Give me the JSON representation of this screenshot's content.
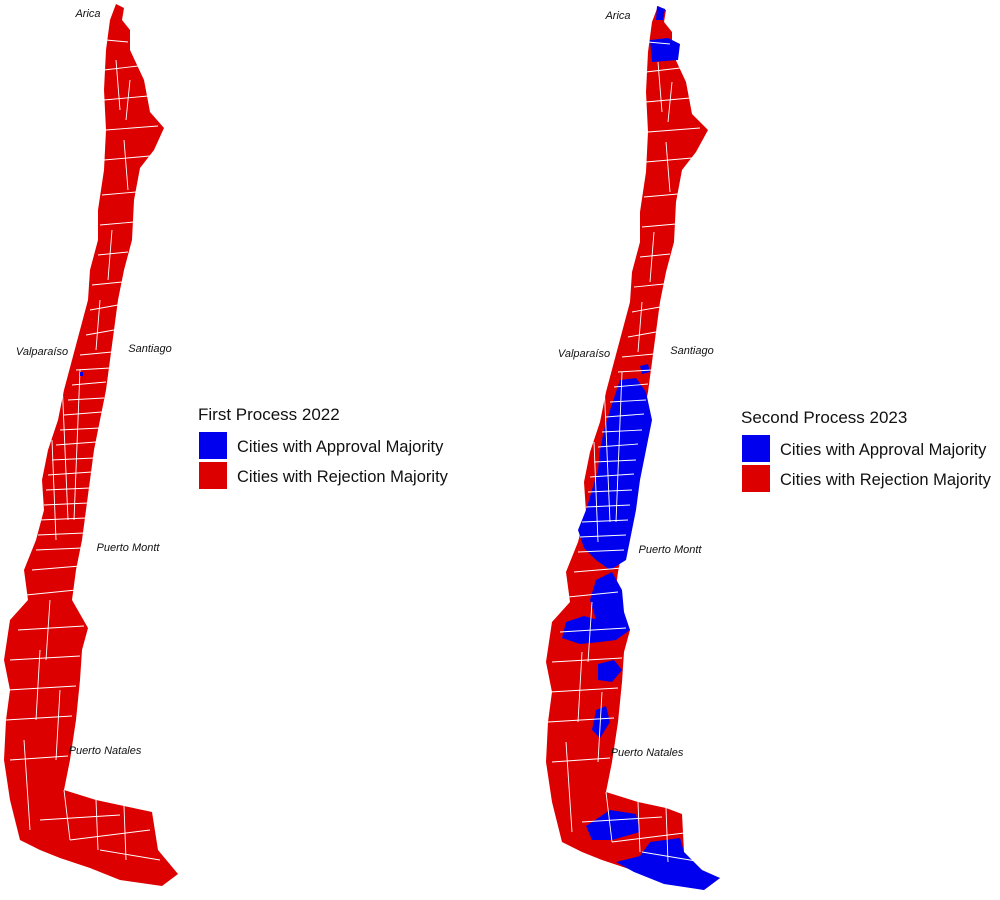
{
  "colors": {
    "approval": "#0000ee",
    "rejection": "#dd0000",
    "boundary": "#ffffff"
  },
  "maps": [
    {
      "id": "first",
      "legend": {
        "title": "First Process 2022",
        "approval_label": "Cities with Approval Majority",
        "rejection_label": "Cities with Rejection Majority"
      },
      "cities": {
        "arica": "Arica",
        "valparaiso": "Valparaíso",
        "santiago": "Santiago",
        "puerto_montt": "Puerto Montt",
        "puerto_natales": "Puerto Natales"
      }
    },
    {
      "id": "second",
      "legend": {
        "title": "Second Process 2023",
        "approval_label": "Cities with Approval Majority",
        "rejection_label": "Cities with Rejection Majority"
      },
      "cities": {
        "arica": "Arica",
        "valparaiso": "Valparaíso",
        "santiago": "Santiago",
        "puerto_montt": "Puerto Montt",
        "puerto_natales": "Puerto Natales"
      }
    }
  ]
}
